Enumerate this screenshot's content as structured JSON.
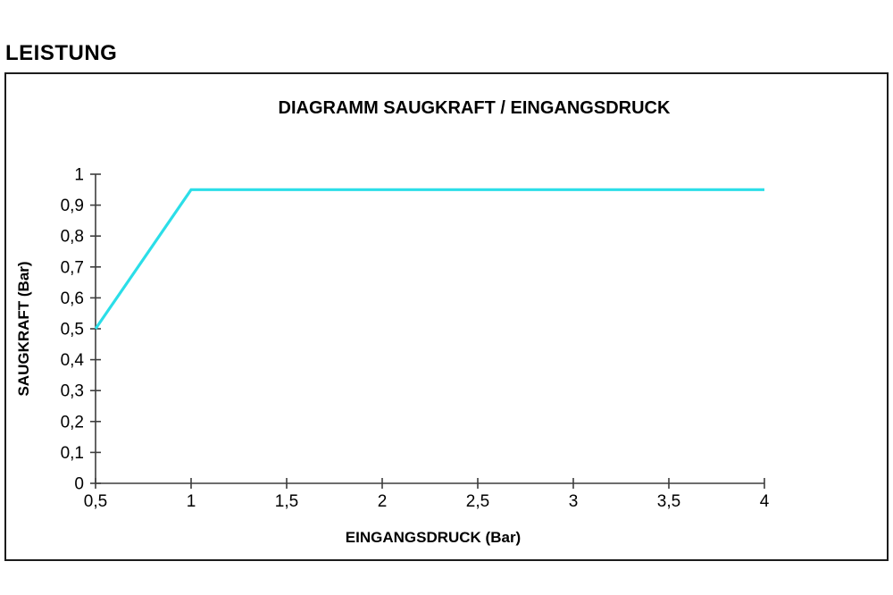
{
  "page": {
    "heading": "LEISTUNG"
  },
  "chart_data": {
    "type": "line",
    "title": "DIAGRAMM SAUGKRAFT / EINGANGSDRUCK",
    "xlabel": "EINGANGSDRUCK (Bar)",
    "ylabel": "SAUGKRAFT (Bar)",
    "series": [
      {
        "name": "Saugkraft",
        "x": [
          0.5,
          1,
          4
        ],
        "y": [
          0.5,
          0.95,
          0.95
        ]
      }
    ],
    "xlim": [
      0.5,
      4
    ],
    "ylim": [
      0,
      1
    ],
    "x_ticks": [
      {
        "value": 0.5,
        "label": "0,5"
      },
      {
        "value": 1,
        "label": "1"
      },
      {
        "value": 1.5,
        "label": "1,5"
      },
      {
        "value": 2,
        "label": "2"
      },
      {
        "value": 2.5,
        "label": "2,5"
      },
      {
        "value": 3,
        "label": "3"
      },
      {
        "value": 3.5,
        "label": "3,5"
      },
      {
        "value": 4,
        "label": "4"
      }
    ],
    "y_ticks": [
      {
        "value": 0,
        "label": "0"
      },
      {
        "value": 0.1,
        "label": "0,1"
      },
      {
        "value": 0.2,
        "label": "0,2"
      },
      {
        "value": 0.3,
        "label": "0,3"
      },
      {
        "value": 0.4,
        "label": "0,4"
      },
      {
        "value": 0.5,
        "label": "0,5"
      },
      {
        "value": 0.6,
        "label": "0,6"
      },
      {
        "value": 0.7,
        "label": "0,7"
      },
      {
        "value": 0.8,
        "label": "0,8"
      },
      {
        "value": 0.9,
        "label": "0,9"
      },
      {
        "value": 1,
        "label": "1"
      }
    ],
    "grid": false,
    "legend": false,
    "line_color": "#2bdee8",
    "axis_color": "#3d3d3d",
    "text_color": "#000000",
    "frame_color": "#1c1c1c"
  }
}
